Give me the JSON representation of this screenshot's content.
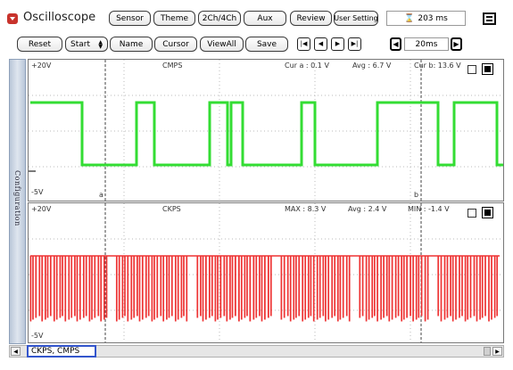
{
  "app": {
    "title": "Oscilloscope"
  },
  "toolbar_top": {
    "buttons": [
      "Sensor",
      "Theme",
      "2Ch/4Ch",
      "Aux",
      "Review",
      "User Setting"
    ],
    "time_readout": "203 ms"
  },
  "toolbar_second": {
    "reset": "Reset",
    "start": "Start",
    "name": "Name",
    "cursor": "Cursor",
    "viewall": "ViewAll",
    "save": "Save",
    "timebase": "20ms"
  },
  "sidebar": {
    "label": "Configuration"
  },
  "channel1": {
    "name": "CMPS",
    "top_label": "+20V",
    "bottom_label": "-5V",
    "cursor_a_label": "a",
    "cursor_b_label": "b",
    "readout_1": "Cur a : 0.1 V",
    "readout_2": "Avg : 6.7 V",
    "readout_3": "Cur b: 13.6 V",
    "color": "#33dd33"
  },
  "channel2": {
    "name": "CKPS",
    "top_label": "+20V",
    "bottom_label": "-5V",
    "readout_1": "MAX : 8.3 V",
    "readout_2": "Avg : 2.4 V",
    "readout_3": "MIN : -1.4 V",
    "color": "#ee3333"
  },
  "status": {
    "channels": "CKPS, CMPS"
  }
}
